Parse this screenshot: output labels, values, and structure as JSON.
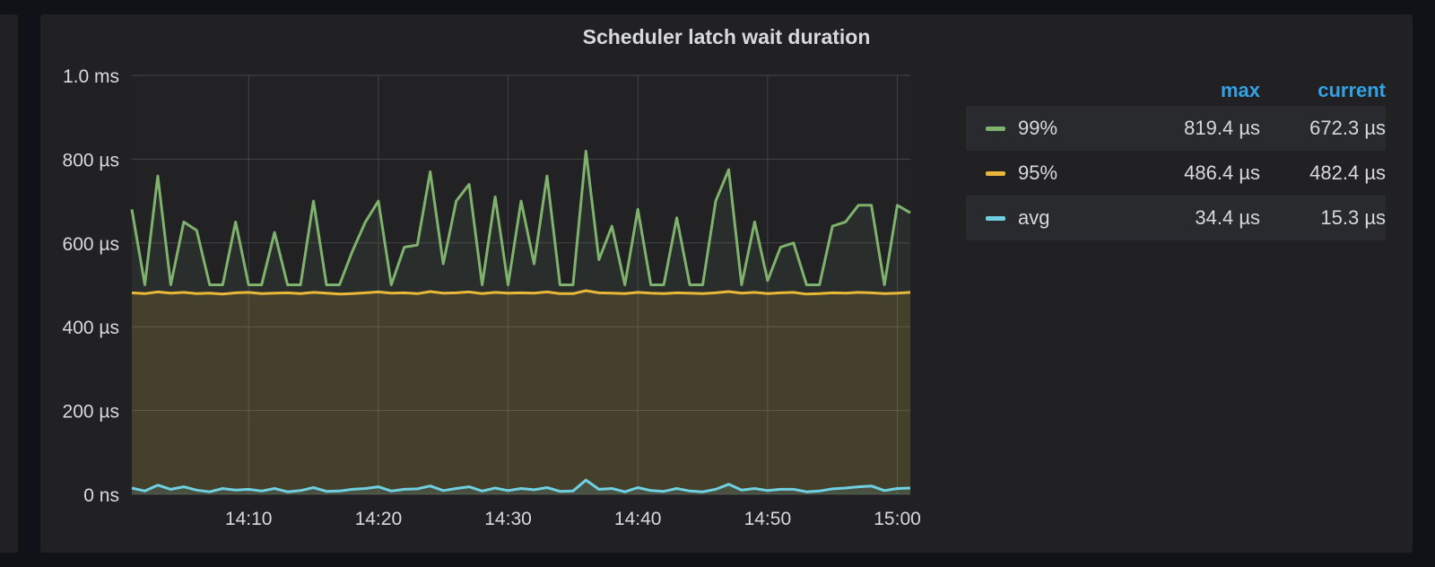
{
  "panel": {
    "title": "Scheduler latch wait duration"
  },
  "legend": {
    "headers": {
      "max": "max",
      "current": "current"
    },
    "rows": [
      {
        "name": "99%",
        "color": "#7eb26d",
        "max": "819.4 µs",
        "current": "672.3 µs"
      },
      {
        "name": "95%",
        "color": "#eab839",
        "max": "486.4 µs",
        "current": "482.4 µs"
      },
      {
        "name": "avg",
        "color": "#6ed0e0",
        "max": "34.4 µs",
        "current": "15.3 µs"
      }
    ]
  },
  "chart_data": {
    "type": "area",
    "title": "Scheduler latch wait duration",
    "x_range": [
      "14:01",
      "15:01"
    ],
    "xticks": [
      "14:10",
      "14:20",
      "14:30",
      "14:40",
      "14:50",
      "15:00"
    ],
    "xtick_times": [
      "14:10",
      "14:20",
      "14:30",
      "14:40",
      "14:50",
      "15:00"
    ],
    "y_unit": "µs",
    "ylim": [
      0,
      1000
    ],
    "yticks": [
      0,
      200,
      400,
      600,
      800,
      1000
    ],
    "ytick_labels": [
      "0 ns",
      "200 µs",
      "400 µs",
      "600 µs",
      "800 µs",
      "1.0 ms"
    ],
    "grid": true,
    "legend_placement": "right",
    "series": [
      {
        "name": "99%",
        "color": "#7eb26d",
        "x": [
          "14:01",
          "14:02",
          "14:03",
          "14:04",
          "14:05",
          "14:06",
          "14:07",
          "14:08",
          "14:09",
          "14:10",
          "14:11",
          "14:12",
          "14:13",
          "14:14",
          "14:15",
          "14:16",
          "14:17",
          "14:18",
          "14:19",
          "14:20",
          "14:21",
          "14:22",
          "14:23",
          "14:24",
          "14:25",
          "14:26",
          "14:27",
          "14:28",
          "14:29",
          "14:30",
          "14:31",
          "14:32",
          "14:33",
          "14:34",
          "14:35",
          "14:36",
          "14:37",
          "14:38",
          "14:39",
          "14:40",
          "14:41",
          "14:42",
          "14:43",
          "14:44",
          "14:45",
          "14:46",
          "14:47",
          "14:48",
          "14:49",
          "14:50",
          "14:51",
          "14:52",
          "14:53",
          "14:54",
          "14:55",
          "14:56",
          "14:57",
          "14:58",
          "14:59",
          "15:00",
          "15:01"
        ],
        "values": [
          680,
          500,
          760,
          500,
          650,
          630,
          500,
          500,
          650,
          500,
          500,
          625,
          500,
          500,
          700,
          500,
          500,
          580,
          650,
          700,
          500,
          590,
          595,
          770,
          550,
          700,
          740,
          500,
          710,
          500,
          700,
          550,
          760,
          500,
          500,
          819,
          560,
          640,
          500,
          680,
          500,
          500,
          660,
          500,
          500,
          700,
          775,
          500,
          650,
          510,
          590,
          600,
          500,
          500,
          640,
          650,
          690,
          690,
          500,
          690,
          672
        ]
      },
      {
        "name": "95%",
        "color": "#eab839",
        "x": [
          "14:01",
          "14:02",
          "14:03",
          "14:04",
          "14:05",
          "14:06",
          "14:07",
          "14:08",
          "14:09",
          "14:10",
          "14:11",
          "14:12",
          "14:13",
          "14:14",
          "14:15",
          "14:16",
          "14:17",
          "14:18",
          "14:19",
          "14:20",
          "14:21",
          "14:22",
          "14:23",
          "14:24",
          "14:25",
          "14:26",
          "14:27",
          "14:28",
          "14:29",
          "14:30",
          "14:31",
          "14:32",
          "14:33",
          "14:34",
          "14:35",
          "14:36",
          "14:37",
          "14:38",
          "14:39",
          "14:40",
          "14:41",
          "14:42",
          "14:43",
          "14:44",
          "14:45",
          "14:46",
          "14:47",
          "14:48",
          "14:49",
          "14:50",
          "14:51",
          "14:52",
          "14:53",
          "14:54",
          "14:55",
          "14:56",
          "14:57",
          "14:58",
          "14:59",
          "15:00",
          "15:01"
        ],
        "values": [
          481,
          479,
          483,
          480,
          482,
          479,
          480,
          478,
          481,
          482,
          479,
          480,
          481,
          479,
          482,
          480,
          478,
          479,
          481,
          483,
          480,
          481,
          479,
          484,
          480,
          481,
          483,
          479,
          482,
          480,
          481,
          480,
          483,
          479,
          479,
          486,
          481,
          480,
          479,
          482,
          480,
          479,
          481,
          480,
          479,
          481,
          484,
          480,
          482,
          479,
          481,
          482,
          478,
          479,
          481,
          480,
          482,
          481,
          479,
          480,
          482
        ]
      },
      {
        "name": "avg",
        "color": "#6ed0e0",
        "x": [
          "14:01",
          "14:02",
          "14:03",
          "14:04",
          "14:05",
          "14:06",
          "14:07",
          "14:08",
          "14:09",
          "14:10",
          "14:11",
          "14:12",
          "14:13",
          "14:14",
          "14:15",
          "14:16",
          "14:17",
          "14:18",
          "14:19",
          "14:20",
          "14:21",
          "14:22",
          "14:23",
          "14:24",
          "14:25",
          "14:26",
          "14:27",
          "14:28",
          "14:29",
          "14:30",
          "14:31",
          "14:32",
          "14:33",
          "14:34",
          "14:35",
          "14:36",
          "14:37",
          "14:38",
          "14:39",
          "14:40",
          "14:41",
          "14:42",
          "14:43",
          "14:44",
          "14:45",
          "14:46",
          "14:47",
          "14:48",
          "14:49",
          "14:50",
          "14:51",
          "14:52",
          "14:53",
          "14:54",
          "14:55",
          "14:56",
          "14:57",
          "14:58",
          "14:59",
          "15:00",
          "15:01"
        ],
        "values": [
          15,
          8,
          22,
          12,
          18,
          10,
          6,
          14,
          10,
          12,
          8,
          14,
          6,
          9,
          16,
          7,
          8,
          12,
          14,
          18,
          8,
          12,
          13,
          20,
          9,
          14,
          18,
          8,
          15,
          9,
          14,
          11,
          16,
          7,
          8,
          34,
          12,
          14,
          6,
          16,
          9,
          7,
          14,
          8,
          6,
          12,
          24,
          10,
          14,
          9,
          12,
          12,
          6,
          8,
          13,
          15,
          18,
          20,
          9,
          14,
          15
        ]
      }
    ]
  }
}
